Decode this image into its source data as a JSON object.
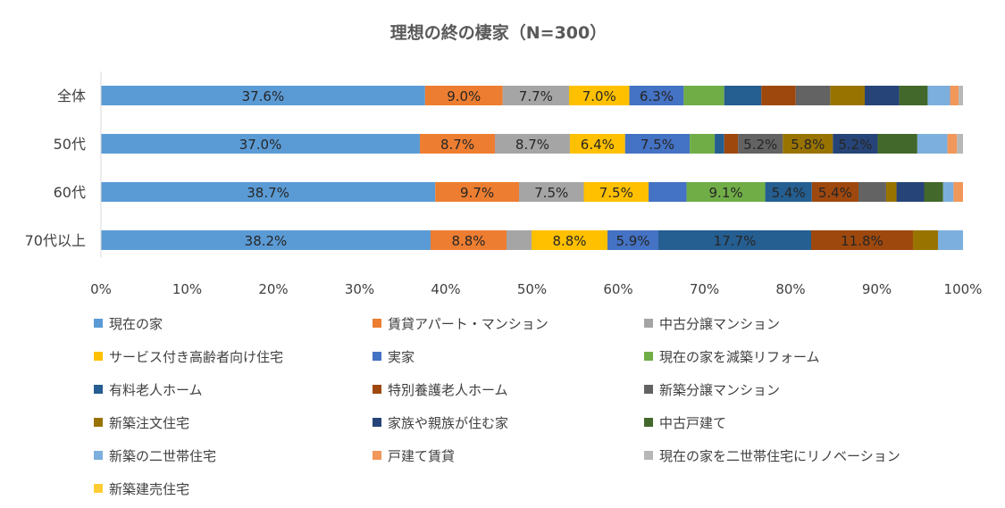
{
  "chart_data": {
    "type": "bar",
    "orientation": "horizontal",
    "stacked": "percent",
    "title": "理想の終の棲家（N=300）",
    "categories": [
      "全体",
      "50代",
      "60代",
      "70代以上"
    ],
    "xlim": [
      0,
      100
    ],
    "xticks": [
      "0%",
      "10%",
      "20%",
      "30%",
      "40%",
      "50%",
      "60%",
      "70%",
      "80%",
      "90%",
      "100%"
    ],
    "grid": false,
    "legend": "bottom",
    "series": [
      {
        "name": "現在の家",
        "color": "#5B9BD5",
        "values": [
          37.6,
          37.0,
          38.7,
          38.2
        ],
        "labels": [
          "37.6%",
          "37.0%",
          "38.7%",
          "38.2%"
        ]
      },
      {
        "name": "賃貸アパート・マンション",
        "color": "#ED7D31",
        "values": [
          9.0,
          8.7,
          9.7,
          8.8
        ],
        "labels": [
          "9.0%",
          "8.7%",
          "9.7%",
          "8.8%"
        ]
      },
      {
        "name": "中古分譲マンション",
        "color": "#A5A5A5",
        "values": [
          7.7,
          8.7,
          7.5,
          2.9
        ],
        "labels": [
          "7.7%",
          "8.7%",
          "7.5%",
          ""
        ]
      },
      {
        "name": "サービス付き高齢者向け住宅",
        "color": "#FFC000",
        "values": [
          7.0,
          6.4,
          7.5,
          8.8
        ],
        "labels": [
          "7.0%",
          "6.4%",
          "7.5%",
          "8.8%"
        ]
      },
      {
        "name": "実家",
        "color": "#4472C4",
        "values": [
          6.3,
          7.5,
          4.4,
          5.9
        ],
        "labels": [
          "6.3%",
          "7.5%",
          "",
          "5.9%"
        ]
      },
      {
        "name": "現在の家を減築リフォーム",
        "color": "#70AD47",
        "values": [
          4.7,
          2.9,
          9.1,
          0
        ],
        "labels": [
          "",
          "",
          "9.1%",
          ""
        ]
      },
      {
        "name": "有料老人ホーム",
        "color": "#255E91",
        "values": [
          4.3,
          1.1,
          5.4,
          17.7
        ],
        "labels": [
          "",
          "",
          "5.4%",
          "17.7%"
        ]
      },
      {
        "name": "特別養護老人ホーム",
        "color": "#9E480E",
        "values": [
          4.0,
          1.6,
          5.4,
          11.8
        ],
        "labels": [
          "",
          "",
          "5.4%",
          "11.8%"
        ]
      },
      {
        "name": "新築分譲マンション",
        "color": "#636363",
        "values": [
          4.0,
          5.2,
          3.2,
          0
        ],
        "labels": [
          "",
          "5.2%",
          "",
          ""
        ]
      },
      {
        "name": "新築注文住宅",
        "color": "#997300",
        "values": [
          4.0,
          5.8,
          1.2,
          2.9
        ],
        "labels": [
          "",
          "5.8%",
          "",
          ""
        ]
      },
      {
        "name": "家族や親族が住む家",
        "color": "#264478",
        "values": [
          4.0,
          5.2,
          3.2,
          0
        ],
        "labels": [
          "",
          "5.2%",
          "",
          ""
        ]
      },
      {
        "name": "中古戸建て",
        "color": "#43682B",
        "values": [
          3.3,
          4.6,
          2.2,
          0
        ],
        "labels": [
          "",
          "",
          "",
          ""
        ]
      },
      {
        "name": "新築の二世帯住宅",
        "color": "#7CAFDD",
        "values": [
          2.6,
          3.5,
          1.2,
          2.9
        ],
        "labels": [
          "",
          "",
          "",
          ""
        ]
      },
      {
        "name": "戸建て賃貸",
        "color": "#F1975A",
        "values": [
          1.0,
          1.1,
          1.1,
          0
        ],
        "labels": [
          "",
          "",
          "",
          ""
        ]
      },
      {
        "name": "現在の家を二世帯住宅にリノベーション",
        "color": "#B7B7B7",
        "values": [
          0.5,
          0.7,
          0,
          0
        ],
        "labels": [
          "",
          "",
          "",
          ""
        ]
      },
      {
        "name": "新築建売住宅",
        "color": "#FFCD33",
        "values": [
          0,
          0,
          0,
          0
        ],
        "labels": [
          "",
          "",
          "",
          ""
        ]
      }
    ]
  }
}
